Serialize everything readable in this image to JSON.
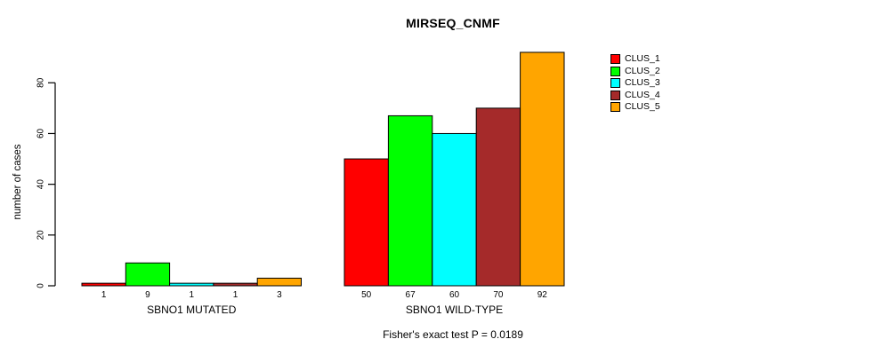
{
  "chart_data": {
    "type": "bar",
    "title": "MIRSEQ_CNMF",
    "ylabel": "number of cases",
    "xlabel": "",
    "ylim": [
      0,
      92
    ],
    "yticks": [
      0,
      20,
      40,
      60,
      80
    ],
    "grid": false,
    "legend_position": "right",
    "categories": [
      "SBNO1 MUTATED",
      "SBNO1 WILD-TYPE"
    ],
    "series": [
      {
        "name": "CLUS_1",
        "color": "#ff0000",
        "values": [
          1,
          50
        ]
      },
      {
        "name": "CLUS_2",
        "color": "#00ff00",
        "values": [
          9,
          67
        ]
      },
      {
        "name": "CLUS_3",
        "color": "#00ffff",
        "values": [
          1,
          60
        ]
      },
      {
        "name": "CLUS_4",
        "color": "#a52a2a",
        "values": [
          1,
          70
        ]
      },
      {
        "name": "CLUS_5",
        "color": "#ffa500",
        "values": [
          3,
          92
        ]
      }
    ],
    "show_value_labels": true,
    "annotation": "Fisher's exact test P = 0.0189"
  },
  "colors": {
    "background": "#ffffff",
    "axis": "#000000",
    "bar_border": "#000000",
    "text": "#000000"
  }
}
